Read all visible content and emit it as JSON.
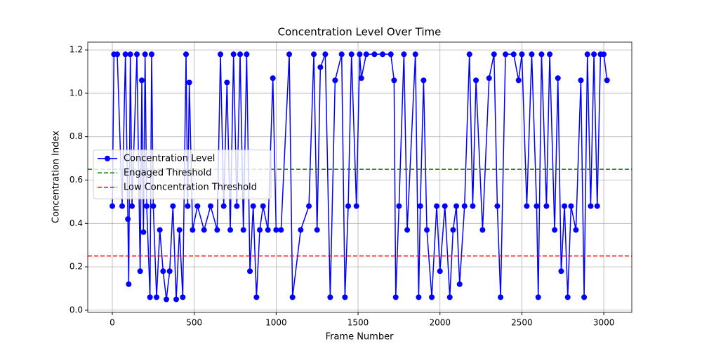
{
  "chart_data": {
    "type": "line",
    "title": "Concentration Level Over Time",
    "x_label": "Frame Number",
    "y_label": "Concentration Index",
    "xlim": [
      -150,
      3171
    ],
    "ylim": [
      -0.01,
      1.236
    ],
    "xticks": [
      0,
      500,
      1000,
      1500,
      2000,
      2500,
      3000
    ],
    "yticks": [
      {
        "value": 0,
        "label": "0.0"
      },
      0.2,
      0.4,
      0.6,
      0.8,
      {
        "value": 1,
        "label": "1.0"
      },
      1.2
    ],
    "grid": true,
    "legend": "center left",
    "x": [
      0,
      10,
      30,
      60,
      80,
      95,
      100,
      110,
      120,
      150,
      170,
      180,
      190,
      200,
      210,
      230,
      240,
      250,
      270,
      290,
      310,
      330,
      350,
      370,
      390,
      410,
      430,
      450,
      460,
      470,
      490,
      520,
      560,
      600,
      640,
      660,
      680,
      700,
      720,
      740,
      760,
      780,
      800,
      820,
      840,
      860,
      880,
      900,
      920,
      950,
      980,
      1000,
      1030,
      1080,
      1100,
      1150,
      1200,
      1230,
      1250,
      1270,
      1300,
      1330,
      1360,
      1400,
      1420,
      1440,
      1460,
      1490,
      1510,
      1520,
      1550,
      1600,
      1650,
      1700,
      1720,
      1730,
      1750,
      1780,
      1800,
      1850,
      1870,
      1880,
      1900,
      1920,
      1950,
      1980,
      2000,
      2030,
      2060,
      2080,
      2100,
      2120,
      2150,
      2180,
      2200,
      2220,
      2260,
      2300,
      2330,
      2350,
      2370,
      2400,
      2450,
      2480,
      2500,
      2530,
      2560,
      2590,
      2600,
      2620,
      2650,
      2670,
      2700,
      2720,
      2740,
      2760,
      2780,
      2800,
      2830,
      2860,
      2880,
      2900,
      2920,
      2940,
      2960,
      2980,
      3000,
      3020
    ],
    "series": [
      {
        "name": "Concentration Level",
        "color": "#0000ff",
        "values": [
          0.48,
          1.18,
          1.18,
          0.48,
          1.18,
          0.42,
          0.12,
          1.18,
          0.48,
          1.18,
          0.18,
          1.06,
          0.36,
          1.18,
          0.48,
          0.06,
          1.18,
          0.48,
          0.06,
          0.37,
          0.18,
          0.05,
          0.18,
          0.48,
          0.05,
          0.37,
          0.06,
          1.18,
          0.48,
          1.05,
          0.37,
          0.48,
          0.37,
          0.48,
          0.37,
          1.18,
          0.48,
          1.05,
          0.37,
          1.18,
          0.48,
          1.18,
          0.37,
          1.18,
          0.18,
          0.48,
          0.06,
          0.37,
          0.48,
          0.37,
          1.07,
          0.37,
          0.37,
          1.18,
          0.06,
          0.37,
          0.48,
          1.18,
          0.37,
          1.12,
          1.18,
          0.06,
          1.06,
          1.18,
          0.06,
          0.48,
          1.18,
          0.48,
          1.18,
          1.07,
          1.18,
          1.18,
          1.18,
          1.18,
          1.06,
          0.06,
          0.48,
          1.18,
          0.37,
          1.18,
          0.06,
          0.48,
          1.06,
          0.37,
          0.06,
          0.48,
          0.18,
          0.48,
          0.06,
          0.37,
          0.48,
          0.12,
          0.48,
          1.18,
          0.48,
          1.06,
          0.37,
          1.07,
          1.18,
          0.48,
          0.06,
          1.18,
          1.18,
          1.06,
          1.18,
          0.48,
          1.18,
          0.48,
          0.06,
          1.18,
          0.48,
          1.18,
          0.37,
          1.07,
          0.18,
          0.48,
          0.06,
          0.48,
          0.37,
          1.06,
          0.06,
          1.18,
          0.48,
          1.18,
          0.48,
          1.18,
          1.18,
          1.06
        ]
      }
    ],
    "thresholds": [
      {
        "name": "Engaged Threshold",
        "value": 0.65,
        "color": "#008000"
      },
      {
        "name": "Low Concentration Threshold",
        "value": 0.25,
        "color": "#ff0000"
      }
    ]
  }
}
